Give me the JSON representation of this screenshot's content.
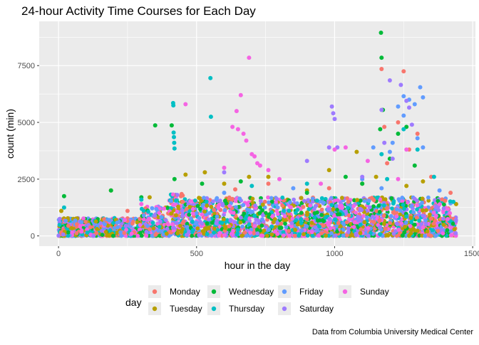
{
  "chart_data": {
    "type": "scatter",
    "title": "24-hour Activity Time Courses for Each Day",
    "xlabel": "hour in the day",
    "ylabel": "count (min)",
    "caption": "Data from Columbia University Medical Center",
    "xlim": [
      -70,
      1510
    ],
    "ylim": [
      -450,
      9450
    ],
    "x_ticks": [
      0,
      500,
      1000,
      1500
    ],
    "x_tick_labels": [
      "0",
      "500",
      "1000",
      "1500"
    ],
    "y_ticks": [
      0,
      2500,
      5000,
      7500
    ],
    "y_tick_labels": [
      "0",
      "2500",
      "5000",
      "7500"
    ],
    "grid": true,
    "legend": {
      "title": "day",
      "position": "bottom",
      "columns": [
        [
          "Monday",
          "Tuesday"
        ],
        [
          "Wednesday",
          "Thursday"
        ],
        [
          "Friday",
          "Saturday"
        ],
        [
          "Sunday"
        ]
      ]
    },
    "colors": {
      "Monday": "#F8766D",
      "Tuesday": "#B79F00",
      "Wednesday": "#00BA38",
      "Thursday": "#00BFC4",
      "Friday": "#619CFF",
      "Saturday": "#9E7BFF",
      "Sunday": "#F564E3"
    },
    "series": [
      {
        "name": "Monday",
        "x": [
          1170,
          1250,
          1180,
          1230,
          1300,
          1420,
          1400,
          760,
          980,
          640,
          450,
          250,
          1050,
          1350,
          1190,
          1270
        ],
        "y": [
          7350,
          7250,
          4800,
          5000,
          4500,
          1900,
          1550,
          2300,
          2100,
          2050,
          1500,
          1100,
          1500,
          2600,
          3200,
          3800
        ]
      },
      {
        "name": "Tuesday",
        "x": [
          10,
          190,
          330,
          530,
          600,
          690,
          900,
          980,
          1080,
          1150,
          1260,
          1320,
          1440,
          460,
          760,
          1100
        ],
        "y": [
          1100,
          2000,
          1700,
          2800,
          2300,
          2600,
          2000,
          2900,
          3700,
          2600,
          2200,
          2400,
          1400,
          2700,
          2600,
          2300
        ]
      },
      {
        "name": "Wednesday",
        "x": [
          1168,
          1170,
          1175,
          1165,
          1230,
          1260,
          350,
          410,
          20,
          190,
          300,
          420,
          520,
          660,
          900,
          1040,
          1100,
          1200,
          1290
        ],
        "y": [
          8950,
          7850,
          5550,
          4700,
          4500,
          4800,
          4870,
          4870,
          1750,
          2000,
          1700,
          2500,
          2300,
          2400,
          1900,
          2600,
          2300,
          3400,
          3100
        ]
      },
      {
        "name": "Thursday",
        "x": [
          415,
          416,
          417,
          418,
          419,
          420,
          550,
          552,
          1170,
          1190,
          1250,
          1300,
          1360,
          1430,
          20,
          300,
          700,
          900
        ],
        "y": [
          5850,
          5750,
          4550,
          4350,
          4100,
          3850,
          6950,
          5250,
          3600,
          2500,
          4700,
          3800,
          2600,
          1500,
          1250,
          1600,
          2200,
          2300
        ]
      },
      {
        "name": "Friday",
        "x": [
          1210,
          1250,
          1310,
          1320,
          1230,
          1250,
          1270,
          1290,
          1300,
          1320,
          1380,
          1140,
          1200,
          1170,
          850,
          600,
          1100
        ],
        "y": [
          4100,
          6150,
          6550,
          6100,
          5700,
          5300,
          6000,
          5800,
          4300,
          3900,
          2000,
          3900,
          3700,
          2100,
          2100,
          1900,
          2500
        ]
      },
      {
        "name": "Saturday",
        "x": [
          990,
          995,
          1000,
          1010,
          1200,
          1240,
          1260,
          1270,
          1170,
          1180,
          1210,
          900,
          1100,
          600,
          1280,
          980
        ],
        "y": [
          5700,
          5400,
          5150,
          3900,
          6850,
          6650,
          5950,
          5650,
          5550,
          4100,
          3400,
          3300,
          2600,
          2800,
          4900,
          3900
        ]
      },
      {
        "name": "Sunday",
        "x": [
          690,
          660,
          645,
          460,
          630,
          650,
          670,
          680,
          700,
          710,
          720,
          730,
          600,
          760,
          800,
          1000,
          1040,
          1120,
          1230,
          1260,
          300,
          950
        ],
        "y": [
          7850,
          6200,
          5500,
          5800,
          4800,
          4700,
          4500,
          4200,
          3600,
          3500,
          3200,
          3100,
          3000,
          2900,
          2500,
          3800,
          3900,
          3300,
          2500,
          3800,
          1400,
          2300
        ]
      }
    ]
  }
}
